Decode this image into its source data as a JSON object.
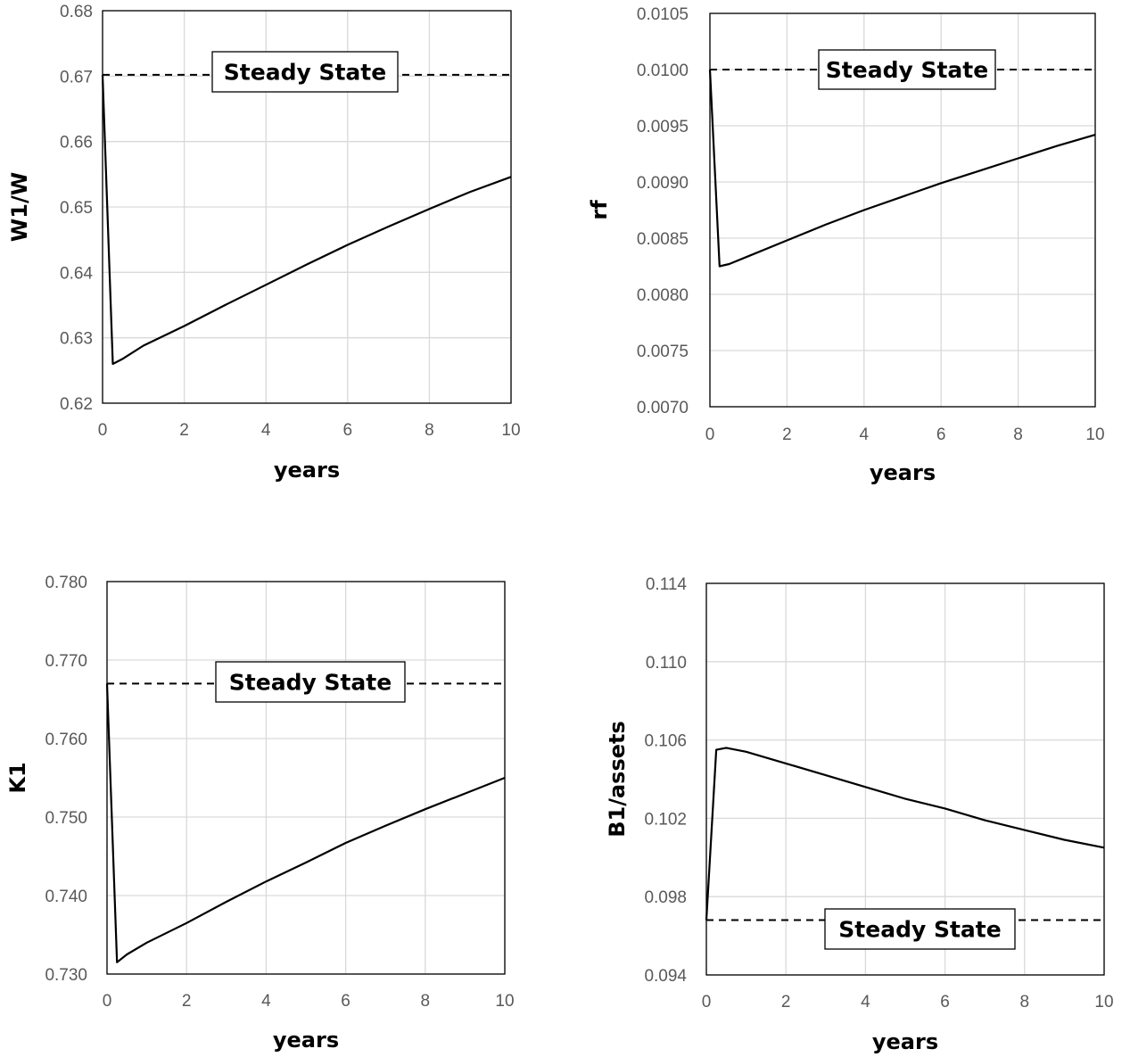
{
  "chart_data": [
    {
      "type": "line",
      "xlabel": "years",
      "ylabel": "W1/W",
      "xlim": [
        0,
        10
      ],
      "ylim": [
        0.62,
        0.68
      ],
      "xticks": [
        "0",
        "2",
        "4",
        "6",
        "8",
        "10"
      ],
      "yticks": [
        "0.62",
        "0.63",
        "0.64",
        "0.65",
        "0.66",
        "0.67",
        "0.68"
      ],
      "grid": true,
      "steady_state": {
        "label": "Steady State",
        "value": 0.6702
      },
      "series": [
        {
          "x": [
            0,
            0.25,
            0.5,
            1,
            2,
            3,
            4,
            5,
            6,
            7,
            8,
            9,
            10
          ],
          "values": [
            0.6702,
            0.626,
            0.6268,
            0.6288,
            0.6318,
            0.635,
            0.6381,
            0.6412,
            0.6442,
            0.647,
            0.6497,
            0.6523,
            0.6546
          ]
        }
      ]
    },
    {
      "type": "line",
      "xlabel": "years",
      "ylabel": "rf",
      "xlim": [
        0,
        10
      ],
      "ylim": [
        0.007,
        0.0105
      ],
      "xticks": [
        "0",
        "2",
        "4",
        "6",
        "8",
        "10"
      ],
      "yticks": [
        "0.0070",
        "0.0075",
        "0.0080",
        "0.0085",
        "0.0090",
        "0.0095",
        "0.0100",
        "0.0105"
      ],
      "grid": true,
      "steady_state": {
        "label": "Steady State",
        "value": 0.01
      },
      "series": [
        {
          "x": [
            0,
            0.25,
            0.5,
            1,
            2,
            3,
            4,
            5,
            6,
            7,
            8,
            9,
            10
          ],
          "values": [
            0.01,
            0.00825,
            0.00827,
            0.00834,
            0.00848,
            0.00862,
            0.00875,
            0.00887,
            0.00899,
            0.0091,
            0.00921,
            0.00932,
            0.00942
          ]
        }
      ]
    },
    {
      "type": "line",
      "xlabel": "years",
      "ylabel": "K1",
      "xlim": [
        0,
        10
      ],
      "ylim": [
        0.73,
        0.78
      ],
      "xticks": [
        "0",
        "2",
        "4",
        "6",
        "8",
        "10"
      ],
      "yticks": [
        "0.730",
        "0.740",
        "0.750",
        "0.760",
        "0.770",
        "0.780"
      ],
      "grid": true,
      "steady_state": {
        "label": "Steady State",
        "value": 0.767
      },
      "series": [
        {
          "x": [
            0,
            0.25,
            0.5,
            1,
            2,
            3,
            4,
            5,
            6,
            7,
            8,
            9,
            10
          ],
          "values": [
            0.767,
            0.7315,
            0.7325,
            0.734,
            0.7365,
            0.7392,
            0.7418,
            0.7442,
            0.7467,
            0.7489,
            0.751,
            0.753,
            0.755
          ]
        }
      ]
    },
    {
      "type": "line",
      "xlabel": "years",
      "ylabel": "B1/assets",
      "xlim": [
        0,
        10
      ],
      "ylim": [
        0.094,
        0.114
      ],
      "xticks": [
        "0",
        "2",
        "4",
        "6",
        "8",
        "10"
      ],
      "yticks": [
        "0.094",
        "0.098",
        "0.102",
        "0.106",
        "0.110",
        "0.114"
      ],
      "grid": true,
      "steady_state": {
        "label": "Steady State",
        "value": 0.0968
      },
      "series": [
        {
          "x": [
            0,
            0.25,
            0.5,
            1,
            2,
            3,
            4,
            5,
            6,
            7,
            8,
            9,
            10
          ],
          "values": [
            0.0968,
            0.1055,
            0.1056,
            0.1054,
            0.1048,
            0.1042,
            0.1036,
            0.103,
            0.1025,
            0.1019,
            0.1014,
            0.1009,
            0.1005
          ]
        }
      ]
    }
  ]
}
